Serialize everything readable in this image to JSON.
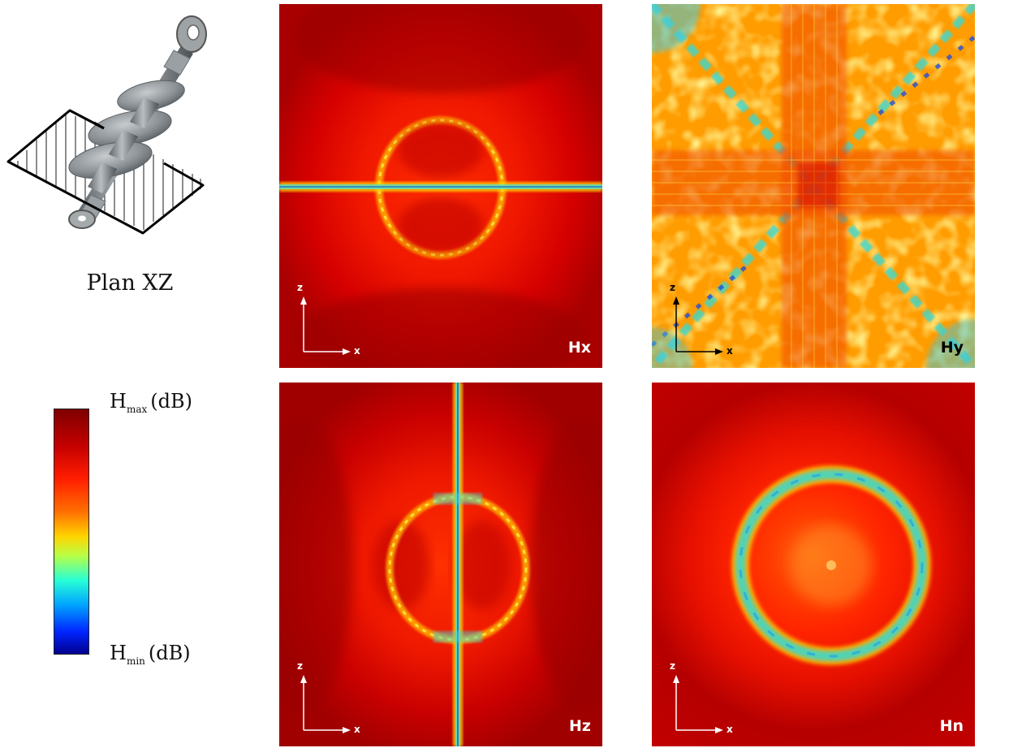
{
  "plane_label": "Plan XZ",
  "colorbar": {
    "max_symbol": "H",
    "max_sub": "max",
    "max_unit": "(dB)",
    "min_symbol": "H",
    "min_sub": "min",
    "min_unit": "(dB)",
    "colormap": "jet"
  },
  "axes": {
    "vertical": "z",
    "horizontal": "x"
  },
  "panels": [
    {
      "name": "Hx",
      "pattern": "horizontal-line-with-ring"
    },
    {
      "name": "Hy",
      "pattern": "cross-with-diagonals"
    },
    {
      "name": "Hz",
      "pattern": "vertical-line-with-ring"
    },
    {
      "name": "Hn",
      "pattern": "concentric-ring"
    }
  ]
}
